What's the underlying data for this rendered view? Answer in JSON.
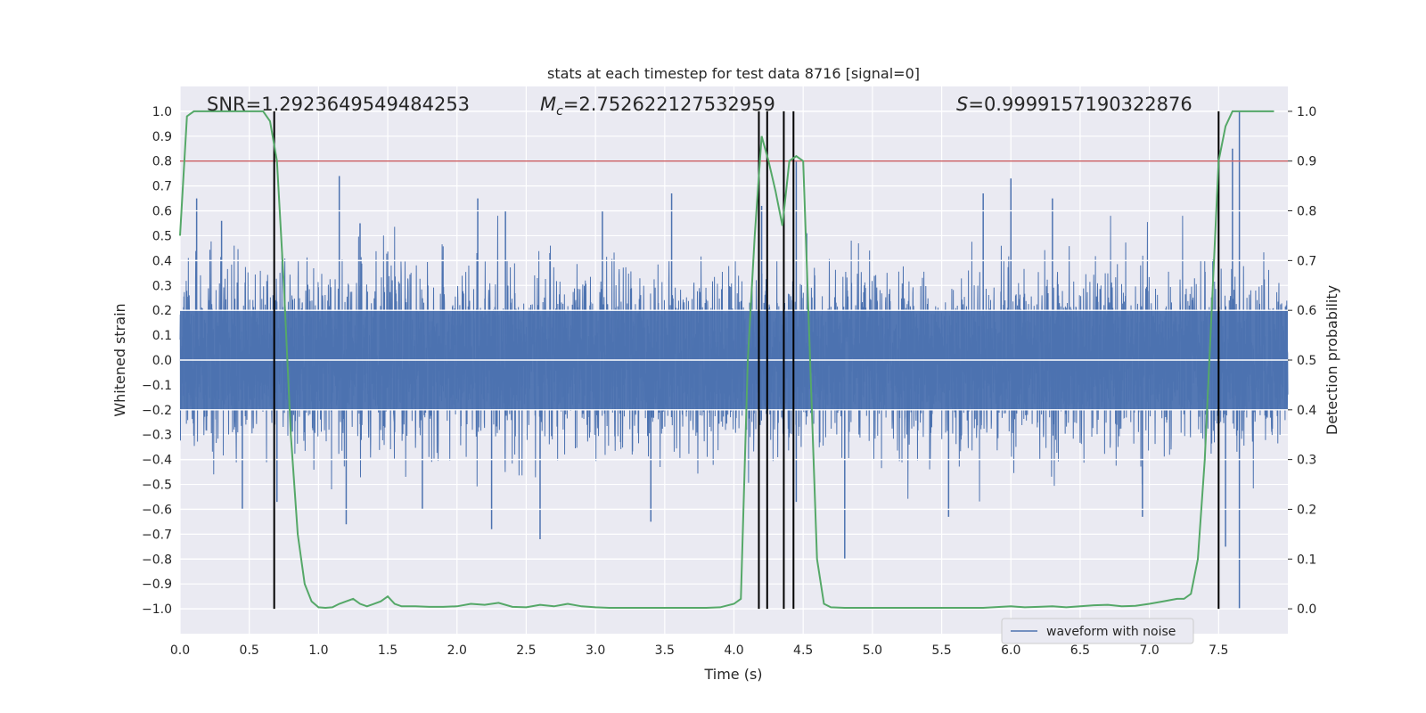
{
  "chart_data": {
    "type": "line",
    "title": "stats at each timestep for test data 8716 [signal=0]",
    "xlabel": "Time (s)",
    "ylabel": "Whitened strain",
    "y2label": "Detection probability",
    "xlim": [
      0.0,
      8.0
    ],
    "ylim": [
      -1.1,
      1.1
    ],
    "y2lim": [
      -0.05,
      1.05
    ],
    "x_ticks": [
      "0.0",
      "0.5",
      "1.0",
      "1.5",
      "2.0",
      "2.5",
      "3.0",
      "3.5",
      "4.0",
      "4.5",
      "5.0",
      "5.5",
      "6.0",
      "6.5",
      "7.0",
      "7.5"
    ],
    "y_ticks": [
      "1.0",
      "0.9",
      "0.8",
      "0.7",
      "0.6",
      "0.5",
      "0.4",
      "0.3",
      "0.2",
      "0.1",
      "0.0",
      "−0.1",
      "−0.2",
      "−0.3",
      "−0.4",
      "−0.5",
      "−0.6",
      "−0.7",
      "−0.8",
      "−0.9",
      "−1.0"
    ],
    "y2_ticks": [
      "1.0",
      "0.9",
      "0.8",
      "0.7",
      "0.6",
      "0.5",
      "0.4",
      "0.3",
      "0.2",
      "0.1",
      "0.0"
    ],
    "grid": true,
    "legend_position": "lower-right",
    "colors": {
      "waveform": "#4c72b0",
      "probability": "#55a868",
      "threshold": "#c44e52",
      "markers": "#000000",
      "background": "#eaeaf2"
    },
    "annotations": {
      "snr": "SNR=1.2923649549484253",
      "mc_symbol": "M",
      "mc_sub": "c",
      "mc_value": "=2.752622127532959",
      "s_symbol": "S",
      "s_value": "=0.9999157190322876"
    },
    "series": [
      {
        "name": "waveform with noise",
        "type": "noise-envelope",
        "x_range": [
          0.0,
          8.0
        ],
        "typical_amplitude": 0.4,
        "peaks_positive": [
          {
            "x": 0.12,
            "y": 0.65
          },
          {
            "x": 0.3,
            "y": 0.56
          },
          {
            "x": 1.15,
            "y": 0.74
          },
          {
            "x": 1.3,
            "y": 0.55
          },
          {
            "x": 2.15,
            "y": 0.65
          },
          {
            "x": 2.35,
            "y": 0.6
          },
          {
            "x": 3.05,
            "y": 0.6
          },
          {
            "x": 3.55,
            "y": 0.67
          },
          {
            "x": 4.2,
            "y": 0.62
          },
          {
            "x": 4.45,
            "y": 0.8
          },
          {
            "x": 5.8,
            "y": 0.67
          },
          {
            "x": 6.0,
            "y": 0.73
          },
          {
            "x": 6.3,
            "y": 0.65
          },
          {
            "x": 7.6,
            "y": 0.85
          },
          {
            "x": 7.65,
            "y": 1.0
          }
        ],
        "peaks_negative": [
          {
            "x": 0.45,
            "y": -0.6
          },
          {
            "x": 0.7,
            "y": -0.57
          },
          {
            "x": 1.2,
            "y": -0.66
          },
          {
            "x": 1.75,
            "y": -0.6
          },
          {
            "x": 2.25,
            "y": -0.68
          },
          {
            "x": 2.6,
            "y": -0.72
          },
          {
            "x": 3.4,
            "y": -0.65
          },
          {
            "x": 4.45,
            "y": -0.57
          },
          {
            "x": 4.8,
            "y": -0.8
          },
          {
            "x": 5.55,
            "y": -0.63
          },
          {
            "x": 6.95,
            "y": -0.63
          },
          {
            "x": 7.55,
            "y": -0.75
          },
          {
            "x": 7.65,
            "y": -1.0
          }
        ]
      },
      {
        "name": "detection probability",
        "axis": "right",
        "x": [
          0.0,
          0.05,
          0.1,
          0.15,
          0.2,
          0.3,
          0.4,
          0.5,
          0.55,
          0.6,
          0.65,
          0.7,
          0.75,
          0.8,
          0.85,
          0.9,
          0.95,
          1.0,
          1.05,
          1.1,
          1.15,
          1.2,
          1.25,
          1.3,
          1.35,
          1.4,
          1.45,
          1.5,
          1.55,
          1.6,
          1.7,
          1.8,
          1.9,
          2.0,
          2.1,
          2.2,
          2.25,
          2.3,
          2.4,
          2.5,
          2.6,
          2.7,
          2.8,
          2.9,
          3.0,
          3.1,
          3.2,
          3.3,
          3.4,
          3.5,
          3.6,
          3.7,
          3.8,
          3.9,
          4.0,
          4.05,
          4.1,
          4.15,
          4.2,
          4.25,
          4.3,
          4.35,
          4.4,
          4.45,
          4.5,
          4.55,
          4.6,
          4.65,
          4.7,
          4.8,
          4.9,
          5.0,
          5.2,
          5.4,
          5.6,
          5.8,
          6.0,
          6.1,
          6.2,
          6.3,
          6.4,
          6.5,
          6.6,
          6.7,
          6.8,
          6.9,
          7.0,
          7.1,
          7.2,
          7.25,
          7.3,
          7.35,
          7.4,
          7.45,
          7.5,
          7.55,
          7.6,
          7.65,
          7.7,
          7.8,
          7.9
        ],
        "values": [
          0.75,
          0.99,
          1.0,
          1.0,
          1.0,
          1.0,
          1.0,
          1.0,
          1.0,
          1.0,
          0.98,
          0.9,
          0.65,
          0.35,
          0.15,
          0.05,
          0.015,
          0.003,
          0.002,
          0.003,
          0.01,
          0.015,
          0.02,
          0.01,
          0.005,
          0.01,
          0.015,
          0.025,
          0.01,
          0.005,
          0.005,
          0.004,
          0.004,
          0.005,
          0.01,
          0.008,
          0.01,
          0.012,
          0.004,
          0.003,
          0.008,
          0.005,
          0.01,
          0.005,
          0.003,
          0.002,
          0.002,
          0.002,
          0.002,
          0.002,
          0.002,
          0.002,
          0.002,
          0.003,
          0.01,
          0.02,
          0.5,
          0.75,
          0.95,
          0.9,
          0.84,
          0.77,
          0.9,
          0.91,
          0.9,
          0.5,
          0.1,
          0.01,
          0.003,
          0.002,
          0.002,
          0.002,
          0.002,
          0.002,
          0.002,
          0.002,
          0.005,
          0.003,
          0.004,
          0.005,
          0.003,
          0.005,
          0.007,
          0.008,
          0.005,
          0.006,
          0.01,
          0.015,
          0.02,
          0.02,
          0.03,
          0.1,
          0.3,
          0.6,
          0.9,
          0.97,
          1.0,
          1.0,
          1.0,
          1.0,
          1.0
        ]
      }
    ],
    "threshold_y": 0.9,
    "marker_lines_x": [
      0.68,
      4.18,
      4.24,
      4.36,
      4.43,
      7.5
    ],
    "marker_line_y_range": [
      -1.0,
      1.0
    ]
  },
  "legend": {
    "label": "waveform with noise"
  }
}
